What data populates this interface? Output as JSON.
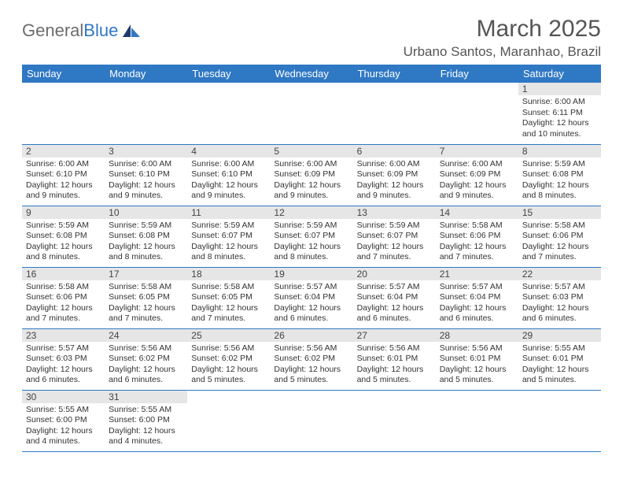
{
  "brand": {
    "part1": "General",
    "part2": "Blue"
  },
  "title": "March 2025",
  "location": "Urbano Santos, Maranhao, Brazil",
  "colors": {
    "header_bg": "#2f78c4",
    "header_text": "#ffffff",
    "grid_line": "#2f78c4",
    "daynum_bg": "#e6e6e6",
    "title_color": "#555555"
  },
  "weekdays": [
    "Sunday",
    "Monday",
    "Tuesday",
    "Wednesday",
    "Thursday",
    "Friday",
    "Saturday"
  ],
  "weeks": [
    [
      null,
      null,
      null,
      null,
      null,
      null,
      {
        "d": "1",
        "sr": "6:00 AM",
        "ss": "6:11 PM",
        "dl": "12 hours and 10 minutes."
      }
    ],
    [
      {
        "d": "2",
        "sr": "6:00 AM",
        "ss": "6:10 PM",
        "dl": "12 hours and 9 minutes."
      },
      {
        "d": "3",
        "sr": "6:00 AM",
        "ss": "6:10 PM",
        "dl": "12 hours and 9 minutes."
      },
      {
        "d": "4",
        "sr": "6:00 AM",
        "ss": "6:10 PM",
        "dl": "12 hours and 9 minutes."
      },
      {
        "d": "5",
        "sr": "6:00 AM",
        "ss": "6:09 PM",
        "dl": "12 hours and 9 minutes."
      },
      {
        "d": "6",
        "sr": "6:00 AM",
        "ss": "6:09 PM",
        "dl": "12 hours and 9 minutes."
      },
      {
        "d": "7",
        "sr": "6:00 AM",
        "ss": "6:09 PM",
        "dl": "12 hours and 9 minutes."
      },
      {
        "d": "8",
        "sr": "5:59 AM",
        "ss": "6:08 PM",
        "dl": "12 hours and 8 minutes."
      }
    ],
    [
      {
        "d": "9",
        "sr": "5:59 AM",
        "ss": "6:08 PM",
        "dl": "12 hours and 8 minutes."
      },
      {
        "d": "10",
        "sr": "5:59 AM",
        "ss": "6:08 PM",
        "dl": "12 hours and 8 minutes."
      },
      {
        "d": "11",
        "sr": "5:59 AM",
        "ss": "6:07 PM",
        "dl": "12 hours and 8 minutes."
      },
      {
        "d": "12",
        "sr": "5:59 AM",
        "ss": "6:07 PM",
        "dl": "12 hours and 8 minutes."
      },
      {
        "d": "13",
        "sr": "5:59 AM",
        "ss": "6:07 PM",
        "dl": "12 hours and 7 minutes."
      },
      {
        "d": "14",
        "sr": "5:58 AM",
        "ss": "6:06 PM",
        "dl": "12 hours and 7 minutes."
      },
      {
        "d": "15",
        "sr": "5:58 AM",
        "ss": "6:06 PM",
        "dl": "12 hours and 7 minutes."
      }
    ],
    [
      {
        "d": "16",
        "sr": "5:58 AM",
        "ss": "6:06 PM",
        "dl": "12 hours and 7 minutes."
      },
      {
        "d": "17",
        "sr": "5:58 AM",
        "ss": "6:05 PM",
        "dl": "12 hours and 7 minutes."
      },
      {
        "d": "18",
        "sr": "5:58 AM",
        "ss": "6:05 PM",
        "dl": "12 hours and 7 minutes."
      },
      {
        "d": "19",
        "sr": "5:57 AM",
        "ss": "6:04 PM",
        "dl": "12 hours and 6 minutes."
      },
      {
        "d": "20",
        "sr": "5:57 AM",
        "ss": "6:04 PM",
        "dl": "12 hours and 6 minutes."
      },
      {
        "d": "21",
        "sr": "5:57 AM",
        "ss": "6:04 PM",
        "dl": "12 hours and 6 minutes."
      },
      {
        "d": "22",
        "sr": "5:57 AM",
        "ss": "6:03 PM",
        "dl": "12 hours and 6 minutes."
      }
    ],
    [
      {
        "d": "23",
        "sr": "5:57 AM",
        "ss": "6:03 PM",
        "dl": "12 hours and 6 minutes."
      },
      {
        "d": "24",
        "sr": "5:56 AM",
        "ss": "6:02 PM",
        "dl": "12 hours and 6 minutes."
      },
      {
        "d": "25",
        "sr": "5:56 AM",
        "ss": "6:02 PM",
        "dl": "12 hours and 5 minutes."
      },
      {
        "d": "26",
        "sr": "5:56 AM",
        "ss": "6:02 PM",
        "dl": "12 hours and 5 minutes."
      },
      {
        "d": "27",
        "sr": "5:56 AM",
        "ss": "6:01 PM",
        "dl": "12 hours and 5 minutes."
      },
      {
        "d": "28",
        "sr": "5:56 AM",
        "ss": "6:01 PM",
        "dl": "12 hours and 5 minutes."
      },
      {
        "d": "29",
        "sr": "5:55 AM",
        "ss": "6:01 PM",
        "dl": "12 hours and 5 minutes."
      }
    ],
    [
      {
        "d": "30",
        "sr": "5:55 AM",
        "ss": "6:00 PM",
        "dl": "12 hours and 4 minutes."
      },
      {
        "d": "31",
        "sr": "5:55 AM",
        "ss": "6:00 PM",
        "dl": "12 hours and 4 minutes."
      },
      null,
      null,
      null,
      null,
      null
    ]
  ],
  "labels": {
    "sunrise": "Sunrise:",
    "sunset": "Sunset:",
    "daylight": "Daylight:"
  }
}
